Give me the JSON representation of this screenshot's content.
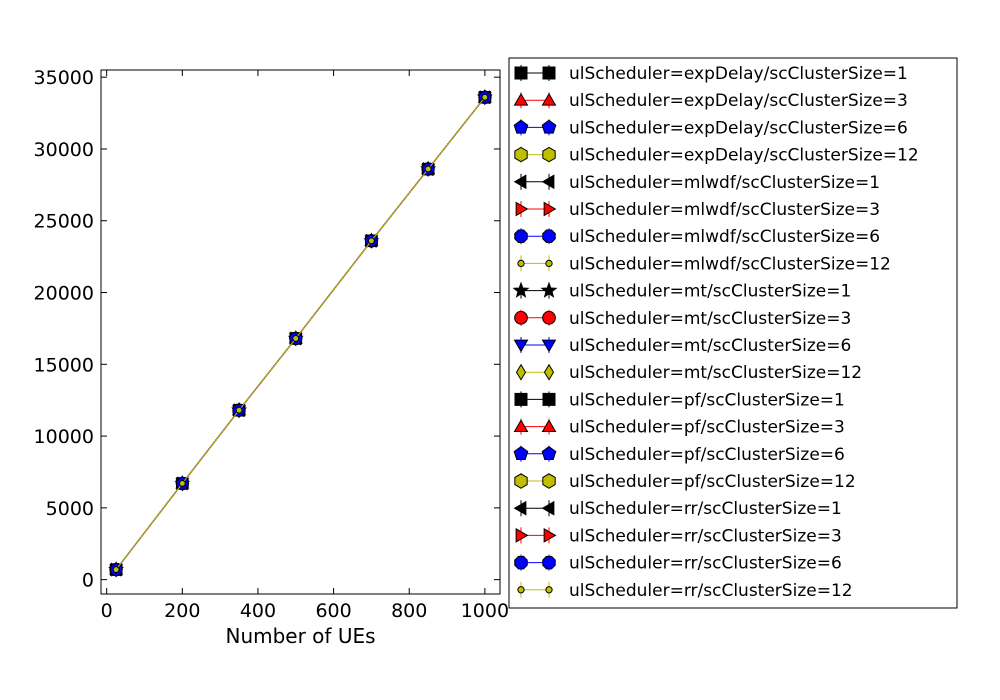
{
  "chart_data": {
    "type": "line",
    "title": "",
    "xlabel": "Number of UEs",
    "ylabel": "",
    "xlim": [
      -15,
      1040
    ],
    "ylim": [
      -1000,
      35500
    ],
    "x_ticks": [
      0,
      200,
      400,
      600,
      800,
      1000
    ],
    "y_ticks": [
      0,
      5000,
      10000,
      15000,
      20000,
      25000,
      30000,
      35000
    ],
    "x_tick_labels": [
      "0",
      "200",
      "400",
      "600",
      "800",
      "1000"
    ],
    "y_tick_labels": [
      "0",
      "5000",
      "10000",
      "15000",
      "20000",
      "25000",
      "30000",
      "35000"
    ],
    "grid": false,
    "legend_position": "right, outside plot",
    "x": [
      25,
      200,
      350,
      500,
      700,
      850,
      1000
    ],
    "series": [
      {
        "name": "ulScheduler=expDelay/scClusterSize=1",
        "color": "#000000",
        "marker": "square",
        "values": [
          700,
          6700,
          11800,
          16800,
          23600,
          28600,
          33600
        ]
      },
      {
        "name": "ulScheduler=expDelay/scClusterSize=3",
        "color": "#ff0000",
        "marker": "triangle-up",
        "values": [
          700,
          6700,
          11800,
          16800,
          23600,
          28600,
          33600
        ]
      },
      {
        "name": "ulScheduler=expDelay/scClusterSize=6",
        "color": "#0000ff",
        "marker": "pentagon",
        "values": [
          700,
          6700,
          11800,
          16800,
          23600,
          28600,
          33600
        ]
      },
      {
        "name": "ulScheduler=expDelay/scClusterSize=12",
        "color": "#bfbf00",
        "marker": "hexagon",
        "values": [
          700,
          6700,
          11800,
          16800,
          23600,
          28600,
          33600
        ]
      },
      {
        "name": "ulScheduler=mlwdf/scClusterSize=1",
        "color": "#000000",
        "marker": "triangle-left",
        "values": [
          700,
          6700,
          11800,
          16800,
          23600,
          28600,
          33600
        ]
      },
      {
        "name": "ulScheduler=mlwdf/scClusterSize=3",
        "color": "#ff0000",
        "marker": "triangle-right",
        "values": [
          700,
          6700,
          11800,
          16800,
          23600,
          28600,
          33600
        ]
      },
      {
        "name": "ulScheduler=mlwdf/scClusterSize=6",
        "color": "#0000ff",
        "marker": "octagon",
        "values": [
          700,
          6700,
          11800,
          16800,
          23600,
          28600,
          33600
        ]
      },
      {
        "name": "ulScheduler=mlwdf/scClusterSize=12",
        "color": "#bfbf00",
        "marker": "dot",
        "values": [
          700,
          6700,
          11800,
          16800,
          23600,
          28600,
          33600
        ]
      },
      {
        "name": "ulScheduler=mt/scClusterSize=1",
        "color": "#000000",
        "marker": "star",
        "values": [
          700,
          6700,
          11800,
          16800,
          23600,
          28600,
          33600
        ]
      },
      {
        "name": "ulScheduler=mt/scClusterSize=3",
        "color": "#ff0000",
        "marker": "circle",
        "values": [
          700,
          6700,
          11800,
          16800,
          23600,
          28600,
          33600
        ]
      },
      {
        "name": "ulScheduler=mt/scClusterSize=6",
        "color": "#0000ff",
        "marker": "triangle-down",
        "values": [
          700,
          6700,
          11800,
          16800,
          23600,
          28600,
          33600
        ]
      },
      {
        "name": "ulScheduler=mt/scClusterSize=12",
        "color": "#bfbf00",
        "marker": "thin-diamond",
        "values": [
          700,
          6700,
          11800,
          16800,
          23600,
          28600,
          33600
        ]
      },
      {
        "name": "ulScheduler=pf/scClusterSize=1",
        "color": "#000000",
        "marker": "square",
        "values": [
          700,
          6700,
          11800,
          16800,
          23600,
          28600,
          33600
        ]
      },
      {
        "name": "ulScheduler=pf/scClusterSize=3",
        "color": "#ff0000",
        "marker": "triangle-up",
        "values": [
          700,
          6700,
          11800,
          16800,
          23600,
          28600,
          33600
        ]
      },
      {
        "name": "ulScheduler=pf/scClusterSize=6",
        "color": "#0000ff",
        "marker": "pentagon",
        "values": [
          700,
          6700,
          11800,
          16800,
          23600,
          28600,
          33600
        ]
      },
      {
        "name": "ulScheduler=pf/scClusterSize=12",
        "color": "#bfbf00",
        "marker": "hexagon",
        "values": [
          700,
          6700,
          11800,
          16800,
          23600,
          28600,
          33600
        ]
      },
      {
        "name": "ulScheduler=rr/scClusterSize=1",
        "color": "#000000",
        "marker": "triangle-left",
        "values": [
          700,
          6700,
          11800,
          16800,
          23600,
          28600,
          33600
        ]
      },
      {
        "name": "ulScheduler=rr/scClusterSize=3",
        "color": "#ff0000",
        "marker": "triangle-right",
        "values": [
          700,
          6700,
          11800,
          16800,
          23600,
          28600,
          33600
        ]
      },
      {
        "name": "ulScheduler=rr/scClusterSize=6",
        "color": "#0000ff",
        "marker": "octagon",
        "values": [
          700,
          6700,
          11800,
          16800,
          23600,
          28600,
          33600
        ]
      },
      {
        "name": "ulScheduler=rr/scClusterSize=12",
        "color": "#bfbf00",
        "marker": "dot",
        "values": [
          700,
          6700,
          11800,
          16800,
          23600,
          28600,
          33600
        ]
      }
    ]
  }
}
